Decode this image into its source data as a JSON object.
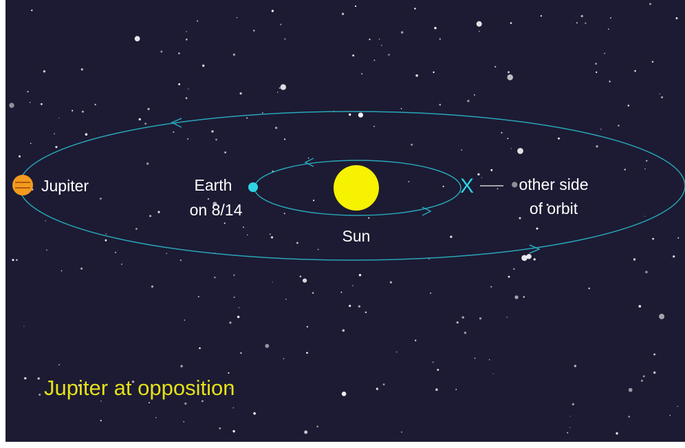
{
  "labels": {
    "jupiter": "Jupiter",
    "earth": [
      "Earth",
      "on 8/14"
    ],
    "sun": "Sun",
    "marker": "X",
    "other_side": [
      "other side",
      "of orbit"
    ]
  },
  "caption": "Jupiter at opposition"
}
